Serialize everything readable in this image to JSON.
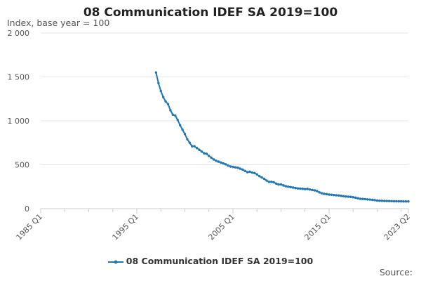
{
  "chart_data": {
    "type": "line",
    "title": "08 Communication IDEF SA 2019=100",
    "ylabel": "Index, base year = 100",
    "xlabel": "",
    "ylim": [
      0,
      2000
    ],
    "yticks": [
      0,
      500,
      1000,
      1500,
      2000
    ],
    "ytick_labels": [
      "0",
      "500",
      "1 000",
      "1 500",
      "2 000"
    ],
    "xticks": [
      "1985 Q1",
      "1995 Q1",
      "2005 Q1",
      "2015 Q1",
      "2023 Q2"
    ],
    "xlim": [
      1985.0,
      2023.25
    ],
    "grid": true,
    "legend_position": "bottom",
    "series": [
      {
        "name": "08 Communication IDEF SA 2019=100",
        "color": "#1f77b4",
        "points": [
          [
            "1997 Q1",
            1550
          ],
          [
            "1997 Q2",
            1430
          ],
          [
            "1997 Q3",
            1340
          ],
          [
            "1997 Q4",
            1270
          ],
          [
            "1998 Q1",
            1220
          ],
          [
            "1998 Q2",
            1190
          ],
          [
            "1998 Q3",
            1120
          ],
          [
            "1998 Q4",
            1070
          ],
          [
            "1999 Q1",
            1060
          ],
          [
            "1999 Q2",
            1010
          ],
          [
            "1999 Q3",
            950
          ],
          [
            "1999 Q4",
            900
          ],
          [
            "2000 Q1",
            850
          ],
          [
            "2000 Q2",
            790
          ],
          [
            "2000 Q3",
            750
          ],
          [
            "2000 Q4",
            710
          ],
          [
            "2001 Q1",
            710
          ],
          [
            "2001 Q2",
            690
          ],
          [
            "2001 Q3",
            670
          ],
          [
            "2001 Q4",
            650
          ],
          [
            "2002 Q1",
            630
          ],
          [
            "2002 Q2",
            625
          ],
          [
            "2002 Q3",
            600
          ],
          [
            "2002 Q4",
            580
          ],
          [
            "2003 Q1",
            560
          ],
          [
            "2003 Q2",
            545
          ],
          [
            "2003 Q3",
            535
          ],
          [
            "2003 Q4",
            525
          ],
          [
            "2004 Q1",
            515
          ],
          [
            "2004 Q2",
            505
          ],
          [
            "2004 Q3",
            490
          ],
          [
            "2004 Q4",
            480
          ],
          [
            "2005 Q1",
            475
          ],
          [
            "2005 Q2",
            470
          ],
          [
            "2005 Q3",
            465
          ],
          [
            "2005 Q4",
            455
          ],
          [
            "2006 Q1",
            445
          ],
          [
            "2006 Q2",
            430
          ],
          [
            "2006 Q3",
            415
          ],
          [
            "2006 Q4",
            420
          ],
          [
            "2007 Q1",
            410
          ],
          [
            "2007 Q2",
            405
          ],
          [
            "2007 Q3",
            390
          ],
          [
            "2007 Q4",
            370
          ],
          [
            "2008 Q1",
            355
          ],
          [
            "2008 Q2",
            340
          ],
          [
            "2008 Q3",
            320
          ],
          [
            "2008 Q4",
            305
          ],
          [
            "2009 Q1",
            305
          ],
          [
            "2009 Q2",
            300
          ],
          [
            "2009 Q3",
            285
          ],
          [
            "2009 Q4",
            275
          ],
          [
            "2010 Q1",
            275
          ],
          [
            "2010 Q2",
            265
          ],
          [
            "2010 Q3",
            255
          ],
          [
            "2010 Q4",
            250
          ],
          [
            "2011 Q1",
            245
          ],
          [
            "2011 Q2",
            240
          ],
          [
            "2011 Q3",
            235
          ],
          [
            "2011 Q4",
            230
          ],
          [
            "2012 Q1",
            228
          ],
          [
            "2012 Q2",
            226
          ],
          [
            "2012 Q3",
            222
          ],
          [
            "2012 Q4",
            225
          ],
          [
            "2013 Q1",
            218
          ],
          [
            "2013 Q2",
            212
          ],
          [
            "2013 Q3",
            208
          ],
          [
            "2013 Q4",
            200
          ],
          [
            "2014 Q1",
            185
          ],
          [
            "2014 Q2",
            175
          ],
          [
            "2014 Q3",
            168
          ],
          [
            "2014 Q4",
            165
          ],
          [
            "2015 Q1",
            160
          ],
          [
            "2015 Q2",
            158
          ],
          [
            "2015 Q3",
            155
          ],
          [
            "2015 Q4",
            152
          ],
          [
            "2016 Q1",
            150
          ],
          [
            "2016 Q2",
            146
          ],
          [
            "2016 Q3",
            142
          ],
          [
            "2016 Q4",
            138
          ],
          [
            "2017 Q1",
            136
          ],
          [
            "2017 Q2",
            134
          ],
          [
            "2017 Q3",
            130
          ],
          [
            "2017 Q4",
            125
          ],
          [
            "2018 Q1",
            118
          ],
          [
            "2018 Q2",
            112
          ],
          [
            "2018 Q3",
            110
          ],
          [
            "2018 Q4",
            108
          ],
          [
            "2019 Q1",
            105
          ],
          [
            "2019 Q2",
            103
          ],
          [
            "2019 Q3",
            100
          ],
          [
            "2019 Q4",
            97
          ],
          [
            "2020 Q1",
            92
          ],
          [
            "2020 Q2",
            90
          ],
          [
            "2020 Q3",
            89
          ],
          [
            "2020 Q4",
            88
          ],
          [
            "2021 Q1",
            87
          ],
          [
            "2021 Q2",
            86
          ],
          [
            "2021 Q3",
            85
          ],
          [
            "2021 Q4",
            84
          ],
          [
            "2022 Q1",
            84
          ],
          [
            "2022 Q2",
            83
          ],
          [
            "2022 Q3",
            83
          ],
          [
            "2022 Q4",
            82
          ],
          [
            "2023 Q1",
            82
          ],
          [
            "2023 Q2",
            82
          ]
        ]
      }
    ],
    "source_label": "Source:"
  }
}
